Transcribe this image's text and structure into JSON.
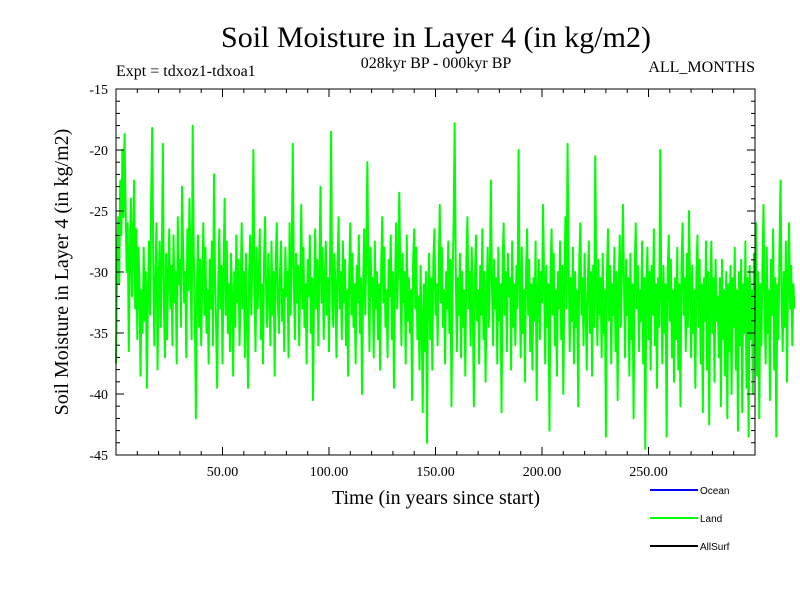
{
  "chart_data": {
    "type": "line",
    "title": "Soil Moisture in Layer 4 (in kg/m2)",
    "subtitle": "028kyr BP - 000kyr BP",
    "experiment": "Expt = tdxoz1-tdxoa1",
    "period": "ALL_MONTHS",
    "xlabel": "Time (in years since start)",
    "ylabel": "Soil Moisture in Layer 4 (in kg/m2)",
    "xlim": [
      0,
      300
    ],
    "ylim": [
      -45,
      -15
    ],
    "x_ticks": [
      50,
      100,
      150,
      200,
      250
    ],
    "x_tick_labels": [
      "50.00",
      "100.00",
      "150.00",
      "200.00",
      "250.00"
    ],
    "y_ticks": [
      -15,
      -20,
      -25,
      -30,
      -35,
      -40,
      -45
    ],
    "y_tick_labels": [
      "-15",
      "-20",
      "-25",
      "-30",
      "-35",
      "-40",
      "-45"
    ],
    "grid": false,
    "legend_position": "bottom-right",
    "series": [
      {
        "name": "Ocean",
        "color": "#0000ff",
        "values": []
      },
      {
        "name": "Land",
        "color": "#00ff00",
        "x_start": 0,
        "x_step": 0.5,
        "values": [
          -37.5,
          -30.0,
          -25.5,
          -31.0,
          -22.5,
          -27.0,
          -20.0,
          -25.5,
          -18.7,
          -24.5,
          -30.0,
          -26.0,
          -36.5,
          -28.5,
          -24.0,
          -32.0,
          -27.5,
          -22.5,
          -33.0,
          -26.5,
          -35.5,
          -28.0,
          -30.5,
          -38.5,
          -31.5,
          -35.0,
          -28.0,
          -34.0,
          -30.0,
          -39.5,
          -32.0,
          -27.5,
          -33.5,
          -24.0,
          -18.2,
          -29.5,
          -36.0,
          -30.5,
          -26.0,
          -38.0,
          -31.0,
          -27.5,
          -34.5,
          -29.0,
          -19.5,
          -33.0,
          -37.0,
          -28.5,
          -35.5,
          -30.0,
          -26.5,
          -33.0,
          -29.5,
          -36.0,
          -27.0,
          -32.5,
          -30.0,
          -37.5,
          -25.5,
          -31.0,
          -29.0,
          -34.5,
          -23.0,
          -28.0,
          -32.5,
          -30.0,
          -37.0,
          -26.5,
          -31.5,
          -24.0,
          -30.0,
          -35.5,
          -18.0,
          -28.5,
          -33.0,
          -42.0,
          -31.0,
          -27.0,
          -34.5,
          -29.0,
          -36.0,
          -30.5,
          -26.0,
          -33.5,
          -28.0,
          -35.0,
          -31.5,
          -37.5,
          -29.0,
          -33.0,
          -27.5,
          -36.0,
          -22.0,
          -30.5,
          -34.5,
          -39.5,
          -31.0,
          -26.5,
          -33.0,
          -29.5,
          -37.5,
          -30.0,
          -24.0,
          -33.5,
          -27.5,
          -35.0,
          -31.0,
          -36.5,
          -28.5,
          -32.0,
          -38.5,
          -30.0,
          -34.5,
          -27.0,
          -32.5,
          -29.0,
          -36.0,
          -31.5,
          -26.0,
          -33.0,
          -30.0,
          -37.0,
          -28.5,
          -34.0,
          -39.5,
          -30.0,
          -27.0,
          -33.5,
          -29.5,
          -20.0,
          -31.0,
          -36.5,
          -28.0,
          -33.0,
          -30.5,
          -26.5,
          -35.5,
          -31.0,
          -37.5,
          -29.0,
          -25.5,
          -32.0,
          -34.5,
          -28.5,
          -31.5,
          -36.0,
          -27.5,
          -33.5,
          -30.0,
          -38.5,
          -29.0,
          -26.0,
          -32.5,
          -35.0,
          -30.0,
          -27.5,
          -34.0,
          -31.5,
          -36.5,
          -28.0,
          -32.0,
          -30.0,
          -37.0,
          -26.0,
          -33.5,
          -29.0,
          -19.5,
          -31.0,
          -35.5,
          -28.5,
          -32.5,
          -29.5,
          -36.0,
          -30.5,
          -24.5,
          -33.0,
          -28.0,
          -34.5,
          -31.0,
          -37.5,
          -29.0,
          -32.0,
          -27.0,
          -35.0,
          -30.5,
          -40.5,
          -31.5,
          -26.5,
          -33.0,
          -29.0,
          -36.0,
          -30.0,
          -23.0,
          -32.5,
          -28.0,
          -35.5,
          -31.0,
          -27.5,
          -33.5,
          -30.5,
          -36.5,
          -29.0,
          -18.5,
          -32.0,
          -34.5,
          -28.5,
          -31.0,
          -37.0,
          -29.5,
          -25.5,
          -33.0,
          -30.0,
          -35.5,
          -27.5,
          -32.5,
          -29.0,
          -36.0,
          -31.5,
          -38.5,
          -30.0,
          -26.0,
          -33.5,
          -28.5,
          -34.5,
          -31.0,
          -37.5,
          -29.5,
          -32.5,
          -27.0,
          -35.0,
          -30.5,
          -40.0,
          -31.5,
          -26.5,
          -33.5,
          -29.0,
          -21.0,
          -30.0,
          -36.5,
          -28.0,
          -32.0,
          -30.5,
          -37.0,
          -27.5,
          -33.0,
          -30.0,
          -35.5,
          -31.0,
          -38.0,
          -29.5,
          -25.5,
          -32.5,
          -28.0,
          -34.5,
          -31.5,
          -37.0,
          -29.0,
          -32.0,
          -27.0,
          -35.5,
          -30.0,
          -39.5,
          -31.0,
          -26.0,
          -33.0,
          -29.5,
          -23.5,
          -30.5,
          -36.0,
          -28.5,
          -32.5,
          -30.0,
          -37.5,
          -27.0,
          -34.0,
          -30.5,
          -35.0,
          -31.5,
          -40.5,
          -29.0,
          -26.5,
          -33.0,
          -28.0,
          -35.5,
          -32.0,
          -38.0,
          -29.5,
          -34.0,
          -41.5,
          -31.0,
          -36.5,
          -30.0,
          -44.0,
          -32.0,
          -28.5,
          -35.5,
          -30.5,
          -38.0,
          -29.0,
          -26.5,
          -33.5,
          -31.0,
          -36.0,
          -30.0,
          -24.5,
          -32.5,
          -28.0,
          -34.5,
          -31.5,
          -37.5,
          -30.0,
          -33.0,
          -27.5,
          -35.0,
          -29.0,
          -41.0,
          -31.0,
          -26.0,
          -17.8,
          -29.5,
          -36.5,
          -30.5,
          -33.5,
          -28.5,
          -37.0,
          -30.0,
          -34.5,
          -31.5,
          -38.5,
          -29.0,
          -25.5,
          -33.0,
          -30.0,
          -36.0,
          -28.0,
          -32.5,
          -41.0,
          -30.5,
          -27.0,
          -34.0,
          -31.5,
          -37.5,
          -29.5,
          -33.5,
          -26.5,
          -35.5,
          -30.0,
          -39.0,
          -32.0,
          -28.0,
          -34.5,
          -30.5,
          -22.5,
          -31.0,
          -36.0,
          -29.0,
          -33.0,
          -30.5,
          -37.5,
          -28.0,
          -34.0,
          -31.0,
          -41.5,
          -29.5,
          -26.0,
          -33.5,
          -30.0,
          -36.5,
          -28.5,
          -32.0,
          -30.5,
          -38.0,
          -27.5,
          -34.5,
          -31.0,
          -36.0,
          -29.5,
          -33.0,
          -20.0,
          -30.5,
          -37.0,
          -28.0,
          -35.0,
          -31.5,
          -39.0,
          -30.0,
          -26.5,
          -33.5,
          -29.0,
          -36.5,
          -31.0,
          -38.0,
          -30.5,
          -34.0,
          -27.5,
          -40.5,
          -31.5,
          -29.0,
          -35.5,
          -30.0,
          -32.5,
          -24.5,
          -31.0,
          -37.5,
          -29.5,
          -34.5,
          -31.0,
          -43.0,
          -30.0,
          -26.5,
          -33.5,
          -28.5,
          -36.0,
          -31.5,
          -38.5,
          -30.0,
          -33.0,
          -27.5,
          -35.5,
          -29.5,
          -40.0,
          -31.0,
          -25.5,
          -33.0,
          -19.5,
          -29.0,
          -36.5,
          -30.5,
          -34.0,
          -28.0,
          -37.5,
          -30.0,
          -34.5,
          -31.5,
          -41.0,
          -29.0,
          -26.0,
          -33.5,
          -30.5,
          -36.0,
          -28.5,
          -33.0,
          -38.0,
          -31.0,
          -27.5,
          -35.0,
          -30.0,
          -38.5,
          -29.5,
          -34.5,
          -20.5,
          -31.0,
          -36.0,
          -29.0,
          -33.5,
          -30.5,
          -37.0,
          -28.5,
          -35.0,
          -31.5,
          -43.5,
          -30.0,
          -26.5,
          -34.0,
          -29.5,
          -37.5,
          -31.0,
          -33.5,
          -28.0,
          -36.5,
          -30.0,
          -40.5,
          -31.5,
          -27.0,
          -34.5,
          -30.0,
          -24.5,
          -31.0,
          -37.0,
          -29.0,
          -33.5,
          -30.5,
          -38.5,
          -28.5,
          -35.5,
          -31.0,
          -42.0,
          -30.0,
          -26.0,
          -33.0,
          -29.5,
          -36.5,
          -31.5,
          -34.0,
          -27.5,
          -37.5,
          -30.5,
          -44.5,
          -31.0,
          -28.0,
          -35.5,
          -30.0,
          -38.0,
          -29.5,
          -33.5,
          -26.5,
          -36.0,
          -31.0,
          -39.5,
          -30.5,
          -34.5,
          -20.0,
          -32.0,
          -37.5,
          -29.5,
          -35.0,
          -31.0,
          -43.5,
          -30.0,
          -27.0,
          -34.0,
          -29.0,
          -37.0,
          -31.5,
          -39.0,
          -30.5,
          -35.5,
          -28.0,
          -38.0,
          -31.0,
          -41.0,
          -29.5,
          -26.0,
          -33.5,
          -30.5,
          -36.5,
          -28.5,
          -34.5,
          -25.0,
          -31.0,
          -37.0,
          -29.5,
          -35.0,
          -31.5,
          -39.5,
          -30.0,
          -27.0,
          -34.5,
          -29.0,
          -37.5,
          -31.0,
          -41.5,
          -30.5,
          -34.0,
          -27.5,
          -38.0,
          -30.0,
          -42.5,
          -31.5,
          -27.5,
          -35.0,
          -30.5,
          -39.0,
          -29.0,
          -34.0,
          -32.0,
          -37.0,
          -30.5,
          -41.0,
          -29.0,
          -35.5,
          -31.5,
          -38.5,
          -30.0,
          -42.0,
          -31.0,
          -36.5,
          -29.5,
          -40.0,
          -30.5,
          -34.5,
          -28.0,
          -38.0,
          -31.5,
          -43.0,
          -30.0,
          -36.0,
          -29.0,
          -41.5,
          -31.0,
          -35.0,
          -27.5,
          -39.5,
          -30.5,
          -43.5,
          -29.5,
          -35.5,
          -31.5,
          -40.0,
          -28.5,
          -34.0,
          -26.0,
          -38.5,
          -30.0,
          -42.0,
          -31.0,
          -36.0,
          -29.5,
          -24.5,
          -33.0,
          -37.5,
          -28.0,
          -35.0,
          -31.5,
          -40.5,
          -29.0,
          -33.5,
          -26.5,
          -38.0,
          -30.5,
          -43.5,
          -31.0,
          -35.5,
          -28.0,
          -22.5,
          -32.5,
          -36.5,
          -30.0,
          -34.5,
          -27.5,
          -39.0,
          -31.0,
          -26.0,
          -33.0,
          -29.5,
          -36.0,
          -31.0,
          -33.0
        ]
      },
      {
        "name": "AllSurf",
        "color": "#000000",
        "values": []
      }
    ],
    "legend": [
      {
        "name": "Ocean",
        "color": "#0000ff"
      },
      {
        "name": "Land",
        "color": "#00ff00"
      },
      {
        "name": "AllSurf",
        "color": "#000000"
      }
    ]
  }
}
